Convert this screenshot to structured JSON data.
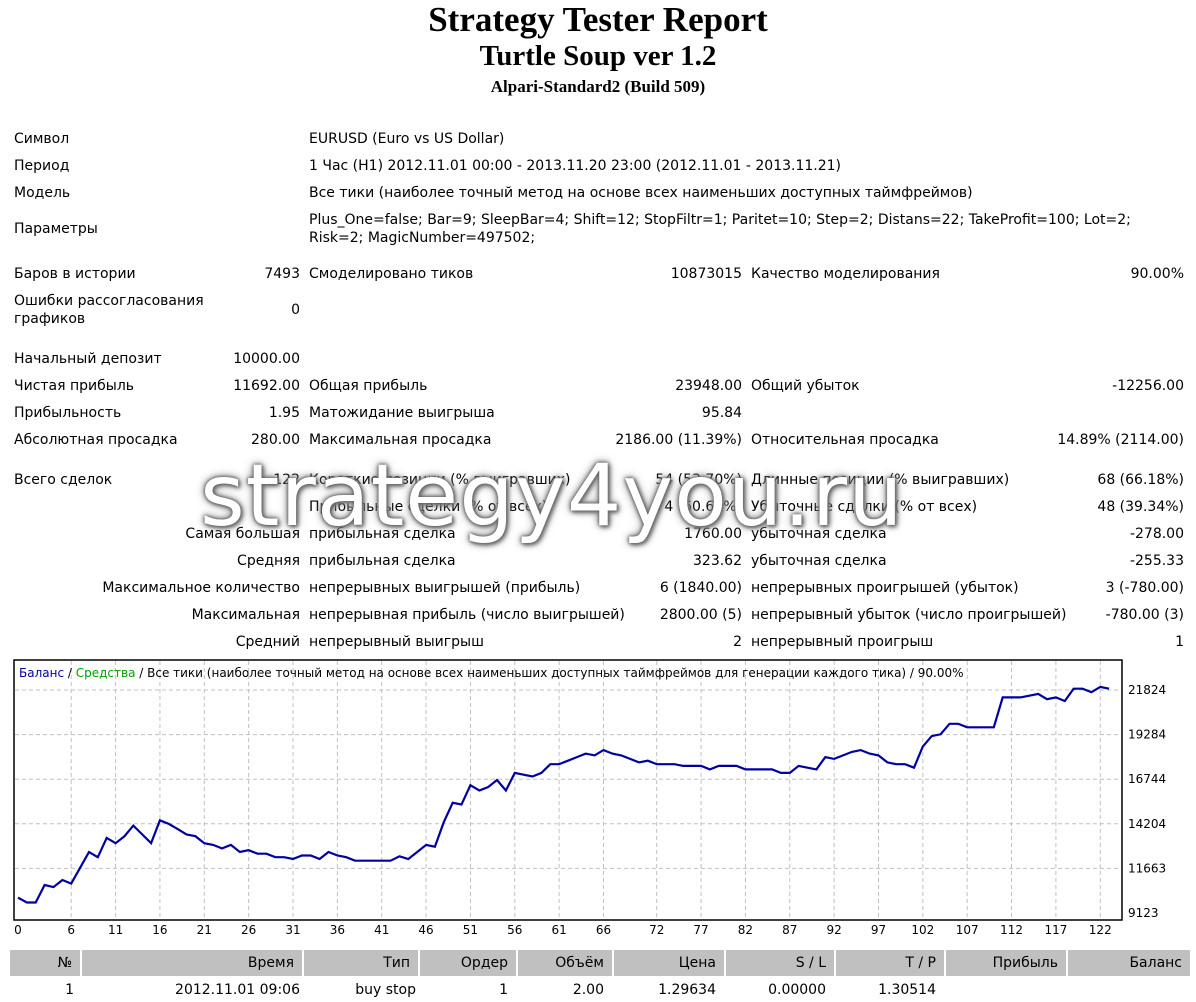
{
  "header": {
    "title": "Strategy Tester Report",
    "ea_name": "Turtle Soup ver 1.2",
    "server": "Alpari-Standard2 (Build 509)"
  },
  "info": {
    "symbol_label": "Символ",
    "symbol_value": "EURUSD (Euro vs US Dollar)",
    "period_label": "Период",
    "period_value": "1 Час (H1) 2012.11.01 00:00 - 2013.11.20 23:00 (2012.11.01 - 2013.11.21)",
    "model_label": "Модель",
    "model_value": "Все тики (наиболее точный метод на основе всех наименьших доступных таймфреймов)",
    "params_label": "Параметры",
    "params_value": "Plus_One=false; Bar=9; SleepBar=4; Shift=12; StopFiltr=1; Paritet=10; Step=2; Distans=22; TakeProfit=100; Lot=2; Risk=2; MagicNumber=497502;"
  },
  "stats": {
    "bars_label": "Баров в истории",
    "bars_value": "7493",
    "ticks_label": "Смоделировано тиков",
    "ticks_value": "10873015",
    "quality_label": "Качество моделирования",
    "quality_value": "90.00%",
    "errors_label": "Ошибки рассогласования графиков",
    "errors_value": "0",
    "deposit_label": "Начальный депозит",
    "deposit_value": "10000.00",
    "net_label": "Чистая прибыль",
    "net_value": "11692.00",
    "gross_profit_label": "Общая прибыль",
    "gross_profit_value": "23948.00",
    "gross_loss_label": "Общий убыток",
    "gross_loss_value": "-12256.00",
    "pf_label": "Прибыльность",
    "pf_value": "1.95",
    "payoff_label": "Матожидание выигрыша",
    "payoff_value": "95.84",
    "abs_dd_label": "Абсолютная просадка",
    "abs_dd_value": "280.00",
    "max_dd_label": "Максимальная просадка",
    "max_dd_value": "2186.00 (11.39%)",
    "rel_dd_label": "Относительная просадка",
    "rel_dd_value": "14.89% (2114.00)",
    "total_trades_label": "Всего сделок",
    "total_trades_value": "122",
    "short_label": "Короткие позиции (% выигравших)",
    "short_value": "54 (53.70%)",
    "long_label": "Длинные позиции (% выигравших)",
    "long_value": "68 (66.18%)",
    "profit_trades_label": "Прибыльные сделки (% от всех)",
    "profit_trades_value": "74 (60.66%)",
    "loss_trades_label": "Убыточные сделки (% от всех)",
    "loss_trades_value": "48 (39.34%)",
    "largest_label": "Самая большая",
    "largest_profit_label": "прибыльная сделка",
    "largest_profit_value": "1760.00",
    "largest_loss_label": "убыточная сделка",
    "largest_loss_value": "-278.00",
    "average_label": "Средняя",
    "average_profit_label": "прибыльная сделка",
    "average_profit_value": "323.62",
    "average_loss_label": "убыточная сделка",
    "average_loss_value": "-255.33",
    "max_count_label": "Максимальное количество",
    "max_cons_wins_label": "непрерывных выигрышей (прибыль)",
    "max_cons_wins_value": "6 (1840.00)",
    "max_cons_losses_label": "непрерывных проигрышей (убыток)",
    "max_cons_losses_value": "3 (-780.00)",
    "maximal_label": "Максимальная",
    "max_cons_profit_label": "непрерывная прибыль (число выигрышей)",
    "max_cons_profit_value": "2800.00 (5)",
    "max_cons_loss_label": "непрерывный убыток (число проигрышей)",
    "max_cons_loss_value": "-780.00 (3)",
    "avg_cons_label": "Средний",
    "avg_cons_wins_label": "непрерывный выигрыш",
    "avg_cons_wins_value": "2",
    "avg_cons_losses_label": "непрерывный проигрыш",
    "avg_cons_losses_value": "1"
  },
  "watermark": "strategy4you.ru",
  "chart_legend": {
    "balance": "Баланс",
    "sep1": " / ",
    "equity": "Средства",
    "rest": " / Все тики (наиболее точный метод на основе всех наименьших доступных таймфреймов для генерации каждого тика) / 90.00%"
  },
  "colors": {
    "balance": "#0000a0",
    "equity": "#00a000",
    "grid": "#c0c0c0",
    "table_header": "#c0c0c0"
  },
  "chart_data": {
    "type": "line",
    "title": "",
    "xlabel": "",
    "ylabel": "",
    "grid": true,
    "xlim": [
      0,
      124
    ],
    "ylim": [
      9123,
      22824
    ],
    "x_ticks": [
      0,
      6,
      11,
      16,
      21,
      26,
      31,
      36,
      41,
      46,
      51,
      56,
      61,
      66,
      72,
      77,
      82,
      87,
      92,
      97,
      102,
      107,
      112,
      117,
      122
    ],
    "y_ticks": [
      9123,
      11663,
      14204,
      16744,
      19284,
      21824
    ],
    "series": [
      {
        "name": "Баланс",
        "x": [
          0,
          1,
          2,
          3,
          4,
          5,
          6,
          7,
          8,
          9,
          10,
          11,
          12,
          13,
          14,
          15,
          16,
          17,
          18,
          19,
          20,
          21,
          22,
          23,
          24,
          25,
          26,
          27,
          28,
          29,
          30,
          31,
          32,
          33,
          34,
          35,
          36,
          37,
          38,
          39,
          40,
          41,
          42,
          43,
          44,
          45,
          46,
          47,
          48,
          49,
          50,
          51,
          52,
          53,
          54,
          55,
          56,
          57,
          58,
          59,
          60,
          61,
          62,
          63,
          64,
          65,
          66,
          67,
          68,
          69,
          70,
          71,
          72,
          73,
          74,
          75,
          76,
          77,
          78,
          79,
          80,
          81,
          82,
          83,
          84,
          85,
          86,
          87,
          88,
          89,
          90,
          91,
          92,
          93,
          94,
          95,
          96,
          97,
          98,
          99,
          100,
          101,
          102,
          103,
          104,
          105,
          106,
          107,
          108,
          109,
          110,
          111,
          112,
          113,
          114,
          115,
          116,
          117,
          118,
          119,
          120,
          121,
          122,
          123
        ],
        "y": [
          10000,
          9720,
          9720,
          10720,
          10600,
          11000,
          10800,
          11700,
          12600,
          12300,
          13400,
          13100,
          13500,
          14100,
          13600,
          13100,
          14400,
          14200,
          13900,
          13600,
          13500,
          13100,
          13000,
          12800,
          13000,
          12600,
          12700,
          12500,
          12500,
          12300,
          12300,
          12200,
          12400,
          12400,
          12200,
          12600,
          12400,
          12300,
          12100,
          12100,
          12100,
          12100,
          12100,
          12350,
          12200,
          12600,
          13000,
          12900,
          14300,
          15400,
          15300,
          16400,
          16100,
          16300,
          16700,
          16100,
          17100,
          17000,
          16900,
          17100,
          17600,
          17600,
          17800,
          18000,
          18200,
          18100,
          18400,
          18200,
          18100,
          17900,
          17700,
          17800,
          17600,
          17600,
          17600,
          17500,
          17500,
          17500,
          17300,
          17500,
          17500,
          17500,
          17300,
          17300,
          17300,
          17300,
          17100,
          17100,
          17500,
          17400,
          17300,
          18000,
          17900,
          18100,
          18300,
          18400,
          18200,
          18100,
          17700,
          17600,
          17600,
          17400,
          18600,
          19200,
          19300,
          19900,
          19900,
          19700,
          19700,
          19700,
          19700,
          21400,
          21400,
          21400,
          21500,
          21600,
          21300,
          21400,
          21200,
          21900,
          21900,
          21700,
          22000,
          21900
        ]
      }
    ]
  },
  "trades_table": {
    "headers": [
      "№",
      "Время",
      "Тип",
      "Ордер",
      "Объём",
      "Цена",
      "S / L",
      "T / P",
      "Прибыль",
      "Баланс"
    ],
    "rows": [
      [
        "1",
        "2012.11.01 09:06",
        "buy stop",
        "1",
        "2.00",
        "1.29634",
        "0.00000",
        "1.30514",
        "",
        ""
      ]
    ]
  }
}
